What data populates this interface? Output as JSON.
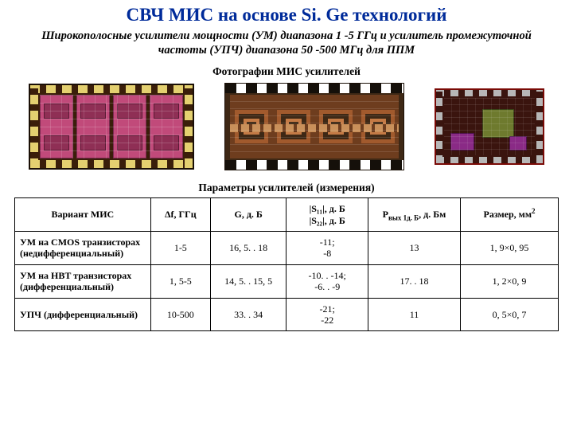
{
  "title": "СВЧ МИС на основе Si. Ge технологий",
  "subtitle": "Широкополосные усилители мощности (УМ) диапазона 1 -5 ГГц и усилитель промежуточной частоты (УПЧ) диапазона 50 -500 МГц для ППМ",
  "photos_caption": "Фотографии МИС усилителей",
  "table_caption": "Параметры усилителей (измерения)",
  "columns": {
    "c0": "Вариант МИС",
    "c1": "Δf, ГГц",
    "c2": "G, д. Б",
    "c3_line1": "|S₁₁|, д. Б",
    "c3_line2": "|S₂₂|, д. Б",
    "c4_html": "P<sub>вых 1д. Б</sub>, д. Бм",
    "c5_html": "Размер, мм<sup>2</sup>"
  },
  "rows": [
    {
      "name": "УМ на CMOS транзисторах (недифференциальный)",
      "df": "1-5",
      "g": "16, 5. . 18",
      "s_line1": "-11;",
      "s_line2": "-8",
      "p": "13",
      "size": "1, 9×0, 95"
    },
    {
      "name": "УМ на HBT транзисторах (дифференциальный)",
      "df": "1, 5-5",
      "g": "14, 5. . 15, 5",
      "s_line1": "-10. . -14;",
      "s_line2": "-6. . -9",
      "p": "17. . 18",
      "size": "1, 2×0, 9"
    },
    {
      "name": "УПЧ (дифференциальный)",
      "df": "10-500",
      "g": "33. . 34",
      "s_line1": "-21;",
      "s_line2": "-22",
      "p": "11",
      "size": "0, 5×0, 7"
    }
  ],
  "colors": {
    "title": "#002b9a",
    "border": "#000000",
    "bg": "#ffffff"
  }
}
